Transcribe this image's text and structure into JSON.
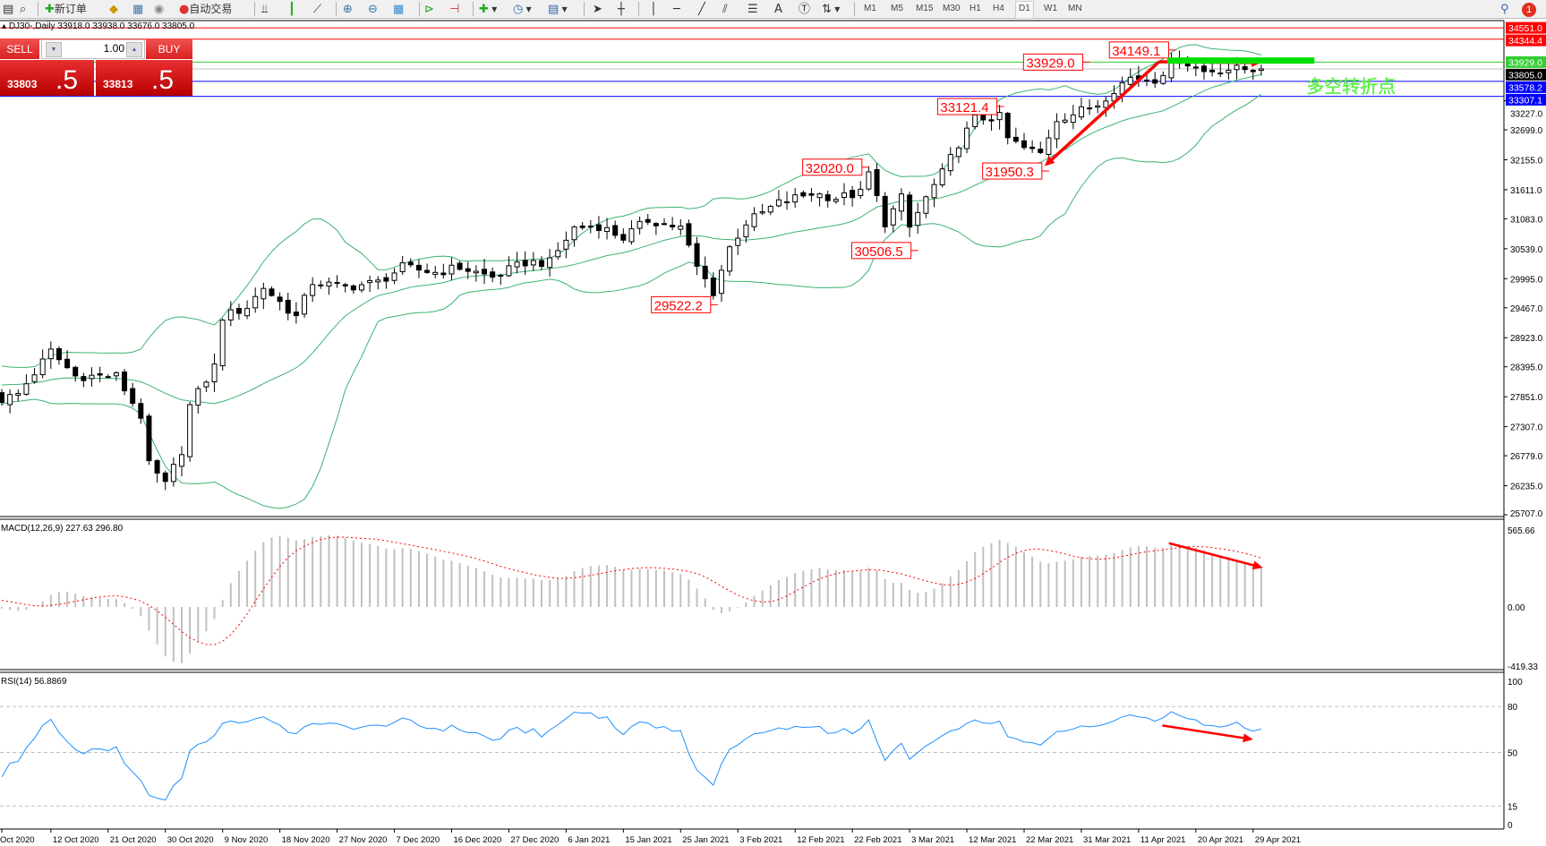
{
  "toolbar": {
    "new_order": "新订单",
    "auto_trading": "自动交易",
    "timeframes": [
      "M1",
      "M5",
      "M15",
      "M30",
      "H1",
      "H4",
      "D1",
      "W1",
      "MN"
    ],
    "active_timeframe": "D1",
    "notification_count": "1"
  },
  "chart": {
    "title": "DJ30-,Daily",
    "ohlc": "33918.0 33938.0 33676.0 33805.0"
  },
  "trade_panel": {
    "sell_label": "SELL",
    "buy_label": "BUY",
    "lots": "1.00",
    "sell_price_main": "33803",
    "sell_price_frac": ".5",
    "buy_price_main": "33813",
    "buy_price_frac": ".5"
  },
  "colors": {
    "bollinger": "#3cb371",
    "macd_hist": "#c0c0c0",
    "macd_signal": "#ff0000",
    "rsi": "#1e90ff",
    "annotation": "#ff0000",
    "pivot_bar": "#00e000",
    "pivot_text": "#66ff44"
  },
  "chart_data": [
    {
      "type": "candlestick",
      "symbol": "DJ30-",
      "timeframe": "Daily",
      "y_range": [
        25707,
        34570
      ],
      "y_ticks": [
        "33227.0",
        "32699.0",
        "32155.0",
        "31611.0",
        "31083.0",
        "30539.0",
        "29995.0",
        "29467.0",
        "28923.0",
        "28395.0",
        "27851.0",
        "27307.0",
        "26779.0",
        "26235.0",
        "25707.0"
      ],
      "x_ticks": [
        {
          "label": "Oct 2020",
          "bar": 0
        },
        {
          "label": "12 Oct 2020",
          "bar": 6
        },
        {
          "label": "21 Oct 2020",
          "bar": 13
        },
        {
          "label": "30 Oct 2020",
          "bar": 20
        },
        {
          "label": "9 Nov 2020",
          "bar": 27
        },
        {
          "label": "18 Nov 2020",
          "bar": 34
        },
        {
          "label": "27 Nov 2020",
          "bar": 41
        },
        {
          "label": "7 Dec 2020",
          "bar": 48
        },
        {
          "label": "16 Dec 2020",
          "bar": 55
        },
        {
          "label": "27 Dec 2020",
          "bar": 62
        },
        {
          "label": "6 Jan 2021",
          "bar": 69
        },
        {
          "label": "15 Jan 2021",
          "bar": 76
        },
        {
          "label": "25 Jan 2021",
          "bar": 83
        },
        {
          "label": "3 Feb 2021",
          "bar": 90
        },
        {
          "label": "12 Feb 2021",
          "bar": 97
        },
        {
          "label": "22 Feb 2021",
          "bar": 104
        },
        {
          "label": "3 Mar 2021",
          "bar": 111
        },
        {
          "label": "12 Mar 2021",
          "bar": 118
        },
        {
          "label": "22 Mar 2021",
          "bar": 125
        },
        {
          "label": "31 Mar 2021",
          "bar": 132
        },
        {
          "label": "11 Apr 2021",
          "bar": 139
        },
        {
          "label": "20 Apr 2021",
          "bar": 146
        },
        {
          "label": "29 Apr 2021",
          "bar": 153
        }
      ],
      "close_path": [
        [
          0,
          27800
        ],
        [
          2,
          27900
        ],
        [
          6,
          28674
        ],
        [
          9,
          28225
        ],
        [
          14,
          28225
        ],
        [
          17,
          27505
        ],
        [
          18,
          26607
        ],
        [
          20,
          26250
        ],
        [
          22,
          26877
        ],
        [
          23,
          27685
        ],
        [
          26,
          28400
        ],
        [
          27,
          29300
        ],
        [
          30,
          29480
        ],
        [
          32,
          29840
        ],
        [
          36,
          29300
        ],
        [
          38,
          29930
        ],
        [
          42,
          29840
        ],
        [
          46,
          29930
        ],
        [
          49,
          30200
        ],
        [
          53,
          30110
        ],
        [
          56,
          30200
        ],
        [
          60,
          30020
        ],
        [
          64,
          30290
        ],
        [
          67,
          30290
        ],
        [
          70,
          30920
        ],
        [
          73,
          30955
        ],
        [
          76,
          30740
        ],
        [
          79,
          31060
        ],
        [
          83,
          30920
        ],
        [
          85,
          30200
        ],
        [
          87,
          29750
        ],
        [
          89,
          30560
        ],
        [
          91,
          31010
        ],
        [
          95,
          31370
        ],
        [
          99,
          31550
        ],
        [
          102,
          31460
        ],
        [
          105,
          31550
        ],
        [
          106,
          31910
        ],
        [
          108,
          31010
        ],
        [
          110,
          31460
        ],
        [
          111,
          30920
        ],
        [
          113,
          31460
        ],
        [
          115,
          31910
        ],
        [
          117,
          32450
        ],
        [
          119,
          32900
        ],
        [
          122,
          32930
        ],
        [
          123,
          32540
        ],
        [
          125,
          32360
        ],
        [
          127,
          32270
        ],
        [
          129,
          32900
        ],
        [
          131,
          32990
        ],
        [
          134,
          33170
        ],
        [
          136,
          33440
        ],
        [
          138,
          33650
        ],
        [
          141,
          33620
        ],
        [
          143,
          33890
        ],
        [
          144,
          33980
        ],
        [
          147,
          33760
        ],
        [
          149,
          33800
        ],
        [
          152,
          33800
        ],
        [
          154,
          33805
        ]
      ],
      "bollinger": {
        "period": 20,
        "deviations": 2
      },
      "horizontal_lines": [
        {
          "price": 34551.0,
          "label": "34551.0",
          "color": "#ff0000",
          "text_color": "#ffffff"
        },
        {
          "price": 34344.4,
          "label": "34344.4",
          "color": "#ff0000",
          "text_color": "#ffffff"
        },
        {
          "price": 33929.0,
          "label": "33929.0",
          "color": "#32cd32",
          "text_color": "#ffffff"
        },
        {
          "price": 33805.0,
          "label": "33805.0",
          "color": "#000000",
          "line_color": "#c0c0c0",
          "text_color": "#ffffff"
        },
        {
          "price": 33578.2,
          "label": "33578.2",
          "color": "#0000ff",
          "text_color": "#ffffff"
        },
        {
          "price": 33307.1,
          "label": "33307.1",
          "color": "#0000ff",
          "text_color": "#ffffff"
        }
      ],
      "price_labels": [
        {
          "text": "34149.1",
          "bar": 143,
          "price": 34149.1
        },
        {
          "text": "33929.0",
          "bar": 132.5,
          "price": 33929.0
        },
        {
          "text": "33121.4",
          "bar": 122,
          "price": 33121.4
        },
        {
          "text": "32020.0",
          "bar": 105.5,
          "price": 32020.0
        },
        {
          "text": "31950.3",
          "bar": 127.5,
          "price": 31950.3
        },
        {
          "text": "30506.5",
          "bar": 111.5,
          "price": 30506.5
        },
        {
          "text": "29522.2",
          "bar": 87,
          "price": 29522.2
        }
      ],
      "arrows": [
        {
          "from": [
            141.5,
            33935
          ],
          "to": [
            127.5,
            32040
          ]
        },
        {
          "from": [
            141.5,
            33935
          ],
          "to": [
            154,
            33920
          ]
        }
      ],
      "pivot_bar": {
        "from_bar": 142.5,
        "to_bar": 160.5,
        "price": 33957
      },
      "pivot_text": {
        "text": "多空转折点",
        "bar": 159.5,
        "price": 33490
      }
    },
    {
      "type": "macd",
      "title": "MACD(12,26,9) 227.63 296.80",
      "params": [
        12,
        26,
        9
      ],
      "y_range": [
        -419.33,
        565.66
      ],
      "y_ticks": [
        {
          "label": "565.66",
          "value": 565.66
        },
        {
          "label": "0.00",
          "value": 0
        },
        {
          "label": "-419.33",
          "value": -419.33
        }
      ],
      "arrow": {
        "from": [
          142.7,
          448
        ],
        "to": [
          154.2,
          276
        ]
      }
    },
    {
      "type": "rsi",
      "title": "RSI(14) 56.8869",
      "period": 14,
      "y_range": [
        0,
        100
      ],
      "y_ticks": [
        {
          "label": "100",
          "value": 100
        },
        {
          "label": "80",
          "value": 80
        },
        {
          "label": "50",
          "value": 50
        },
        {
          "label": "15",
          "value": 15
        },
        {
          "label": "0",
          "value": 0
        }
      ],
      "levels": [
        80,
        50,
        15
      ],
      "arrow": {
        "from": [
          141.9,
          67.6
        ],
        "to": [
          153,
          58.5
        ]
      }
    }
  ]
}
